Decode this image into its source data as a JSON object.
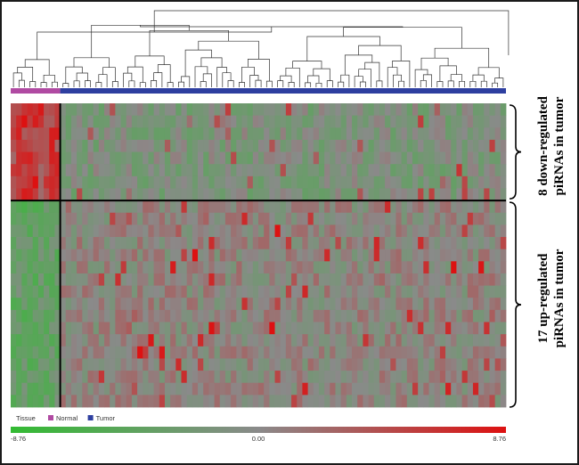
{
  "chart_data": {
    "type": "heatmap",
    "rows": 25,
    "columns": 90,
    "groups": {
      "label": "Tissue",
      "items": [
        {
          "name": "Normal",
          "count": 9,
          "color": "#b04aa2"
        },
        {
          "name": "Tumor",
          "count": 81,
          "color": "#2e3fa0"
        }
      ]
    },
    "row_clusters": [
      {
        "label": "8 down-regulated piRNAs in tumor",
        "rows": 8
      },
      {
        "label": "17 up-regulated piRNAs in tumor",
        "rows": 17
      }
    ],
    "color_scale": {
      "min": -8.76,
      "mid": 0.0,
      "max": 8.76,
      "min_label": "-8.76",
      "mid_label": "0.00",
      "max_label": "8.76",
      "low_color": "#33bb33",
      "mid_color": "#8a8a8a",
      "high_color": "#dd1111"
    }
  },
  "labels": {
    "down": [
      "8 down-regulated",
      "piRNAs in tumor"
    ],
    "up": [
      "17 up-regulated",
      "piRNAs in tumor"
    ]
  }
}
